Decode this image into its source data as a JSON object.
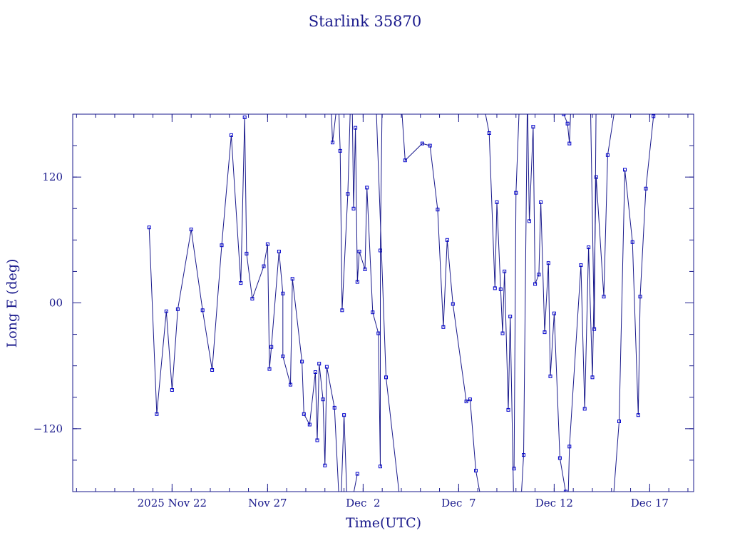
{
  "chart_data": {
    "type": "line",
    "title": "Starlink 35870",
    "xlabel": "Time(UTC)",
    "ylabel": "Long E (deg)",
    "x_unit": "days (Nov 2025 – Dec 2025)",
    "xlim": [
      16.8,
      49.3
    ],
    "ylim": [
      -180,
      180
    ],
    "x_ticks": [
      {
        "value": 22,
        "label": "2025 Nov 22"
      },
      {
        "value": 27,
        "label": "Nov 27"
      },
      {
        "value": 32,
        "label": "Dec  2"
      },
      {
        "value": 37,
        "label": "Dec  7"
      },
      {
        "value": 42,
        "label": "Dec 12"
      },
      {
        "value": 47,
        "label": "Dec 17"
      }
    ],
    "y_ticks": [
      {
        "value": 120,
        "label": "120"
      },
      {
        "value": 0,
        "label": "00"
      },
      {
        "value": -120,
        "label": "−120"
      }
    ],
    "grid": false,
    "legend": "none",
    "color": "#1a1a8c",
    "marker_color": "#0000cc",
    "series": [
      {
        "values": [
          [
            20.8,
            72
          ],
          [
            21.2,
            -106
          ],
          [
            21.7,
            -8
          ],
          [
            22.0,
            -83
          ],
          [
            22.3,
            -6
          ],
          [
            23.0,
            70
          ],
          [
            23.6,
            -7
          ],
          [
            24.1,
            -64
          ],
          [
            24.6,
            55
          ],
          [
            25.1,
            160
          ],
          [
            25.6,
            19
          ],
          [
            25.8,
            177
          ],
          [
            25.9,
            47
          ],
          [
            26.2,
            4
          ],
          [
            26.8,
            35
          ],
          [
            27.0,
            56
          ],
          [
            27.1,
            -63
          ],
          [
            27.2,
            -42
          ],
          [
            27.6,
            49
          ],
          [
            27.8,
            9
          ],
          [
            27.8,
            -51
          ],
          [
            28.2,
            -78
          ],
          [
            28.3,
            23
          ],
          [
            28.8,
            -56
          ],
          [
            28.9,
            -106
          ],
          [
            29.2,
            -116
          ],
          [
            29.5,
            -66
          ],
          [
            29.6,
            -131
          ],
          [
            29.7,
            -58
          ],
          [
            29.9,
            -92
          ],
          [
            30.0,
            -155
          ],
          [
            30.1,
            -61
          ],
          [
            30.5,
            -100
          ],
          [
            30.8,
            -210
          ],
          [
            31.0,
            -107
          ],
          [
            31.2,
            -210
          ]
        ]
      },
      {
        "values": [
          [
            30.3,
            200
          ],
          [
            30.4,
            153
          ],
          [
            30.7,
            200
          ],
          [
            30.8,
            145
          ],
          [
            30.9,
            -7
          ],
          [
            31.2,
            104
          ],
          [
            31.4,
            230
          ],
          [
            31.5,
            90
          ],
          [
            31.6,
            167
          ],
          [
            31.7,
            20
          ],
          [
            31.8,
            49
          ],
          [
            32.1,
            32
          ],
          [
            32.2,
            110
          ],
          [
            32.5,
            -9
          ],
          [
            32.8,
            -29
          ],
          [
            32.9,
            -156
          ],
          [
            32.9,
            50
          ],
          [
            33.0,
            200
          ]
        ]
      },
      {
        "values": [
          [
            31.2,
            -210
          ],
          [
            31.7,
            -163
          ]
        ]
      },
      {
        "values": [
          [
            32.6,
            230
          ],
          [
            33.2,
            -71
          ],
          [
            34.0,
            -200
          ]
        ]
      },
      {
        "values": [
          [
            34.0,
            190
          ],
          [
            34.2,
            136
          ],
          [
            35.1,
            152
          ],
          [
            35.5,
            150
          ],
          [
            35.9,
            89
          ],
          [
            36.2,
            -23
          ],
          [
            36.4,
            60
          ],
          [
            36.7,
            -1
          ],
          [
            37.4,
            -94
          ],
          [
            37.6,
            -92
          ],
          [
            37.9,
            -160
          ],
          [
            38.4,
            -210
          ]
        ]
      },
      {
        "values": [
          [
            38.3,
            190
          ],
          [
            38.6,
            162
          ],
          [
            38.9,
            14
          ],
          [
            39.0,
            96
          ],
          [
            39.2,
            13
          ],
          [
            39.3,
            -29
          ],
          [
            39.4,
            30
          ],
          [
            39.6,
            -102
          ],
          [
            39.7,
            -13
          ],
          [
            39.9,
            -210
          ]
        ]
      },
      {
        "values": [
          [
            39.9,
            -158
          ],
          [
            40.0,
            105
          ],
          [
            40.2,
            200
          ]
        ]
      },
      {
        "values": [
          [
            40.2,
            -210
          ],
          [
            40.4,
            -145
          ],
          [
            40.6,
            200
          ],
          [
            40.7,
            78
          ],
          [
            40.9,
            168
          ],
          [
            41.0,
            18
          ],
          [
            41.2,
            27
          ],
          [
            41.3,
            96
          ],
          [
            41.5,
            -28
          ],
          [
            41.7,
            38
          ],
          [
            41.8,
            -70
          ],
          [
            42.0,
            -10
          ],
          [
            42.3,
            -148
          ],
          [
            42.6,
            -180
          ]
        ]
      },
      {
        "values": [
          [
            42.5,
            180
          ],
          [
            42.7,
            171
          ],
          [
            42.8,
            152
          ],
          [
            42.9,
            200
          ]
        ]
      },
      {
        "values": [
          [
            42.7,
            -210
          ],
          [
            42.8,
            -137
          ],
          [
            43.4,
            36
          ],
          [
            43.6,
            -101
          ],
          [
            43.8,
            53
          ],
          [
            44.0,
            -71
          ],
          [
            44.2,
            120
          ],
          [
            44.6,
            6
          ],
          [
            44.8,
            141
          ],
          [
            45.3,
            200
          ]
        ]
      },
      {
        "values": [
          [
            43.9,
            190
          ],
          [
            44.1,
            -25
          ],
          [
            44.2,
            200
          ]
        ]
      },
      {
        "values": [
          [
            45.0,
            -210
          ],
          [
            45.4,
            -113
          ],
          [
            45.7,
            127
          ],
          [
            46.1,
            58
          ],
          [
            46.4,
            -107
          ],
          [
            46.5,
            6
          ],
          [
            46.8,
            109
          ],
          [
            47.2,
            178
          ],
          [
            47.5,
            200
          ]
        ]
      }
    ]
  }
}
